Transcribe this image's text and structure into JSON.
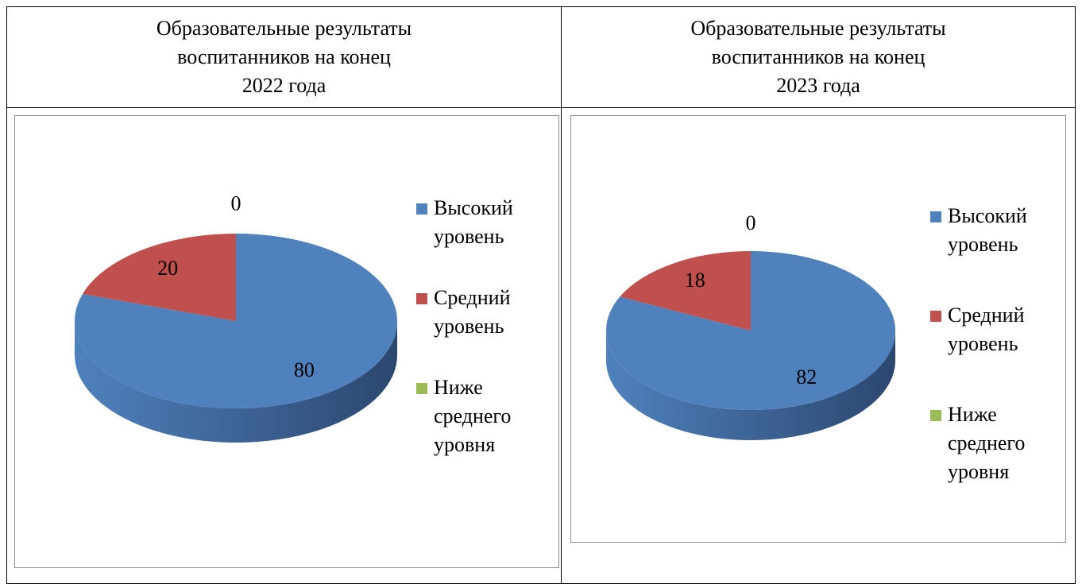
{
  "chart_data": [
    {
      "type": "pie",
      "title": [
        "Образовательные результаты",
        "воспитанников на конец",
        "2022 года"
      ],
      "categories": [
        "Высокий уровень",
        "Средний уровень",
        "Ниже среднего уровня"
      ],
      "values": [
        80,
        20,
        0
      ],
      "colors": [
        "#4f81bd",
        "#c0504d",
        "#9bbb59"
      ],
      "legend": "right"
    },
    {
      "type": "pie",
      "title": [
        "Образовательные результаты",
        "воспитанников на конец",
        "2023 года"
      ],
      "categories": [
        "Высокий уровень",
        "Средний уровень",
        "Ниже среднего уровня"
      ],
      "values": [
        82,
        18,
        0
      ],
      "colors": [
        "#4f81bd",
        "#c0504d",
        "#9bbb59"
      ],
      "legend": "right"
    }
  ]
}
